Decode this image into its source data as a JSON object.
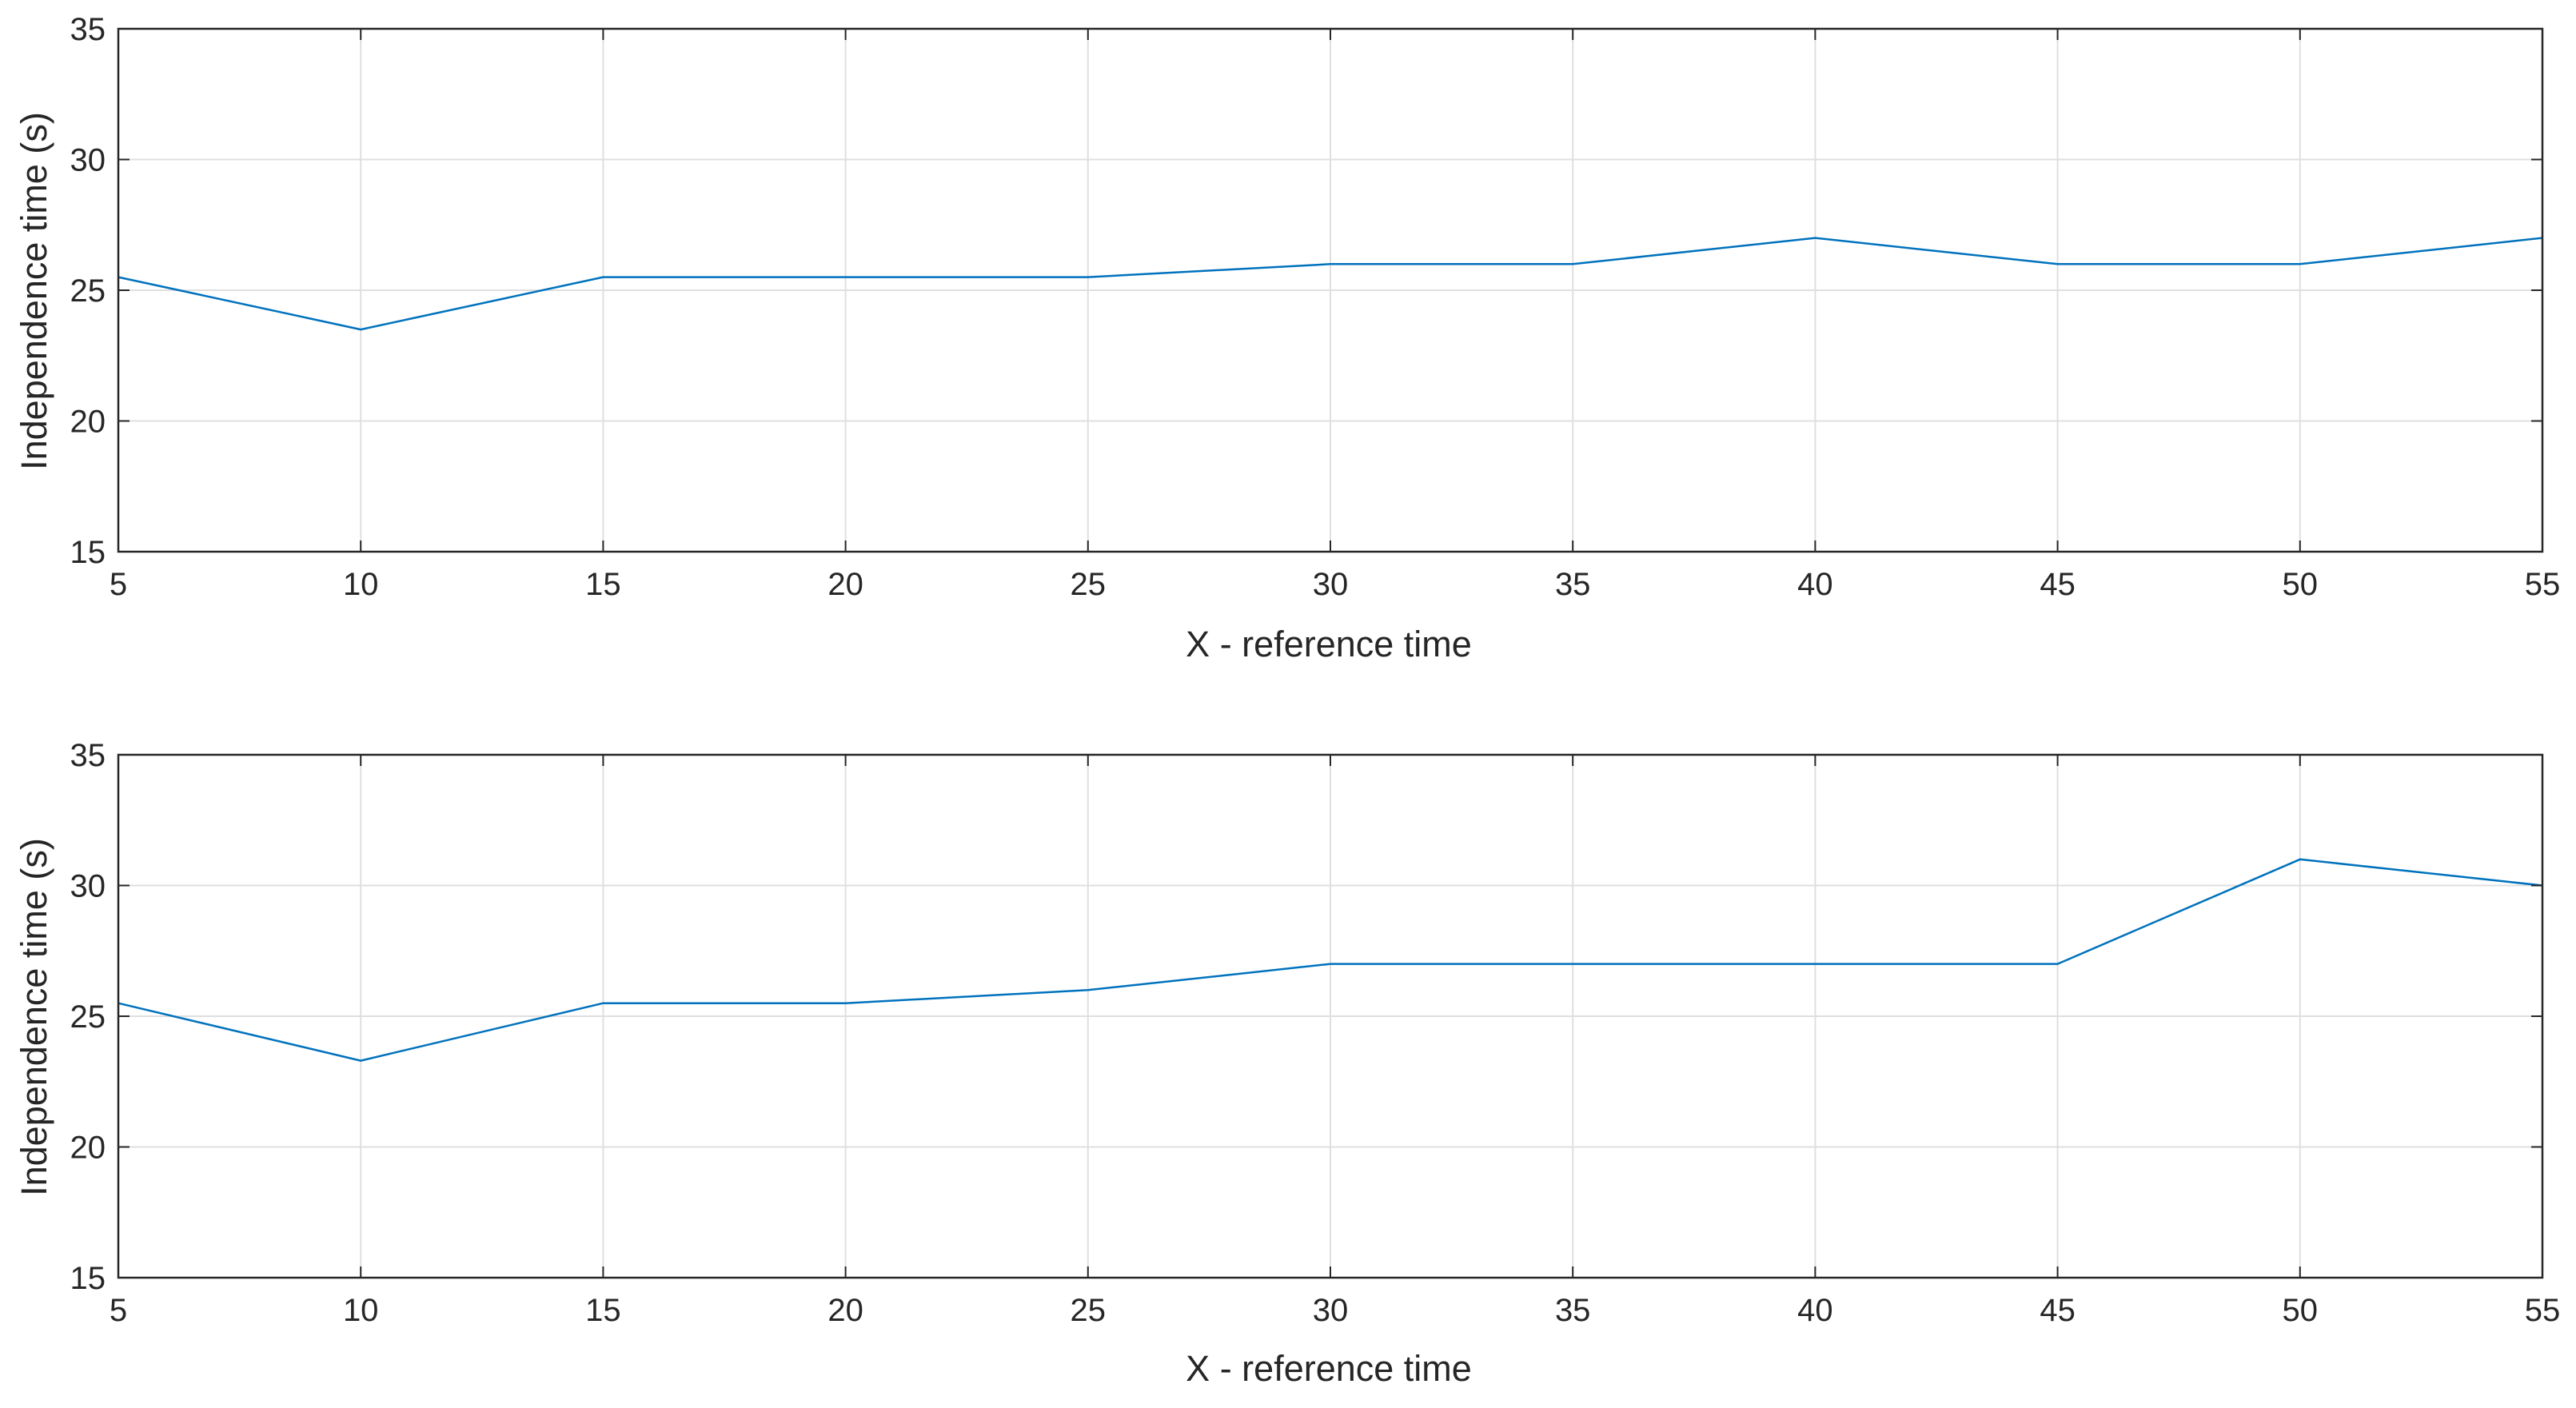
{
  "chart_data": [
    {
      "type": "line",
      "xlabel": "X - reference time",
      "ylabel": "Independence time (s)",
      "xlim": [
        5,
        55
      ],
      "ylim": [
        15,
        35
      ],
      "xticks": [
        5,
        10,
        15,
        20,
        25,
        30,
        35,
        40,
        45,
        50,
        55
      ],
      "yticks": [
        15,
        20,
        25,
        30,
        35
      ],
      "grid": true,
      "series": [
        {
          "color": "#0072BD",
          "x": [
            5,
            10,
            15,
            20,
            25,
            30,
            35,
            40,
            45,
            50,
            55
          ],
          "y": [
            25.5,
            23.5,
            25.5,
            25.5,
            25.5,
            26,
            26,
            27,
            26,
            26,
            27
          ]
        }
      ]
    },
    {
      "type": "line",
      "xlabel": "X - reference time",
      "ylabel": "Independence time (s)",
      "xlim": [
        5,
        55
      ],
      "ylim": [
        15,
        35
      ],
      "xticks": [
        5,
        10,
        15,
        20,
        25,
        30,
        35,
        40,
        45,
        50,
        55
      ],
      "yticks": [
        15,
        20,
        25,
        30,
        35
      ],
      "grid": true,
      "series": [
        {
          "color": "#0072BD",
          "x": [
            5,
            10,
            15,
            20,
            25,
            30,
            35,
            40,
            45,
            50,
            55
          ],
          "y": [
            25.5,
            23.3,
            25.5,
            25.5,
            26,
            27,
            27,
            27,
            27,
            31,
            30
          ]
        }
      ]
    }
  ]
}
